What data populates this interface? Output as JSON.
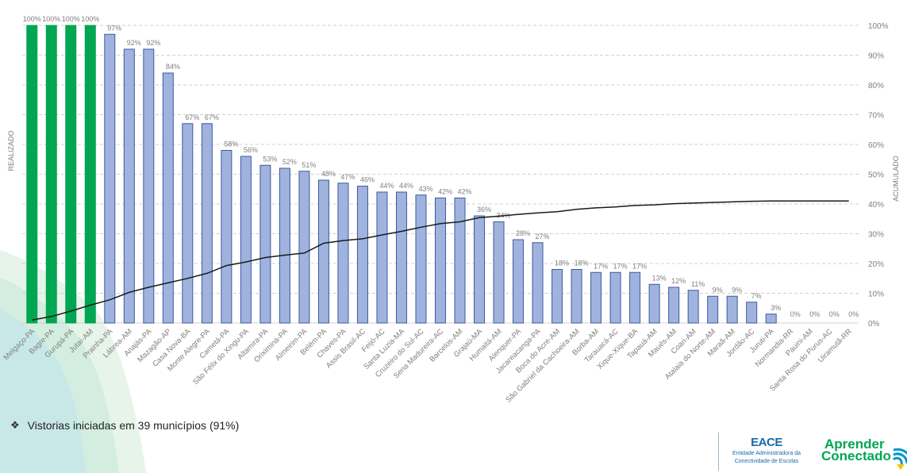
{
  "chart_data": {
    "type": "bar",
    "title": "",
    "ylabel_left": "REALIZADO",
    "ylabel_right": "ACUMULADO",
    "ylim": [
      0,
      100
    ],
    "yticks": [
      "0%",
      "10%",
      "20%",
      "30%",
      "40%",
      "50%",
      "60%",
      "70%",
      "80%",
      "90%",
      "100%"
    ],
    "categories": [
      "Melgaço-PA",
      "Bagre-PA",
      "Gurupá-PA",
      "Jutaí-AM",
      "Prainha-PA",
      "Lábrea-AM",
      "Anajás-PA",
      "Mazagão-AP",
      "Casa Nova-BA",
      "Monte Alegre-PA",
      "Cametá-PA",
      "São Félix do Xingu-PA",
      "Altamira-PA",
      "Oriximiná-PA",
      "Almeirim-PA",
      "Belém-PA",
      "Chaves-PA",
      "Assis Brasil-AC",
      "Feijó-AC",
      "Santa Luzia-MA",
      "Cruzeiro do Sul-AC",
      "Sena Madureira-AC",
      "Barcelos-AM",
      "Grajaú-MA",
      "Humaitá-AM",
      "Alenquer-PA",
      "Jacareacanga-PA",
      "Boca do Acre-AM",
      "São Gabriel da Cachoeira-AM",
      "Borba-AM",
      "Tarauacá-AC",
      "Xique-Xique-BA",
      "Tapauá-AM",
      "Maués-AM",
      "Coari-AM",
      "Atalaia do Norte-AM",
      "Maraã-AM",
      "Jordão-AC",
      "Juruti-PA",
      "Normandia-RR",
      "Pauini-AM",
      "Santa Rosa do Purus-AC",
      "Uiramutã-RR"
    ],
    "series": [
      {
        "name": "REALIZADO",
        "type": "bar",
        "values": [
          100,
          100,
          100,
          100,
          97,
          92,
          92,
          84,
          67,
          67,
          58,
          56,
          53,
          52,
          51,
          48,
          47,
          46,
          44,
          44,
          43,
          42,
          42,
          36,
          34,
          28,
          27,
          18,
          18,
          17,
          17,
          17,
          13,
          12,
          11,
          9,
          9,
          7,
          3,
          0,
          0,
          0,
          0
        ],
        "labels": [
          "100%",
          "100%",
          "100%",
          "100%",
          "97%",
          "92%",
          "92%",
          "84%",
          "67%",
          "67%",
          "58%",
          "56%",
          "53%",
          "52%",
          "51%",
          "48%",
          "47%",
          "46%",
          "44%",
          "44%",
          "43%",
          "42%",
          "42%",
          "36%",
          "34%",
          "28%",
          "27%",
          "18%",
          "18%",
          "17%",
          "17%",
          "17%",
          "13%",
          "12%",
          "11%",
          "9%",
          "9%",
          "7%",
          "3%",
          "0%",
          "0%",
          "0%",
          "0%"
        ],
        "highlight_count": 4
      },
      {
        "name": "ACUMULADO",
        "type": "line",
        "values": [
          1,
          2.2,
          4,
          6,
          7.8,
          10.3,
          12,
          13.5,
          15,
          16.7,
          19.3,
          20.5,
          22,
          22.8,
          23.5,
          26.8,
          27.7,
          28.3,
          29.6,
          30.8,
          32.2,
          33.4,
          34,
          35.4,
          35.9,
          36.5,
          37,
          37.4,
          38.2,
          38.7,
          39,
          39.5,
          39.7,
          40.1,
          40.3,
          40.5,
          40.7,
          40.9,
          41,
          41,
          41,
          41,
          41
        ]
      }
    ]
  },
  "colors": {
    "bar_highlight": "#00a651",
    "bar_default": "#9fb3de",
    "bar_border": "#3d5a9e",
    "line": "#1a1a1a",
    "grid": "#d0d0d0",
    "text": "#7f7f7f"
  },
  "note": {
    "bullet": "❖",
    "text": "Vistorias iniciadas em 39 municípios (91%)"
  },
  "logos": {
    "eace_name": "EACE",
    "eace_sub_1": "Entidade Administradora da",
    "eace_sub_2": "Conectividade de Escolas",
    "aprender_1": "Aprender",
    "aprender_2": "Conectado"
  }
}
